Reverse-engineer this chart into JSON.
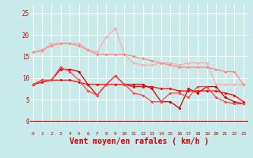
{
  "background_color": "#c8eaea",
  "grid_color": "#ffffff",
  "xlabel": "Vent moyen/en rafales ( km/h )",
  "xlabel_color": "#cc0000",
  "xlabel_fontsize": 7,
  "tick_label_color": "#cc0000",
  "x": [
    0,
    1,
    2,
    3,
    4,
    5,
    6,
    7,
    8,
    9,
    10,
    11,
    12,
    13,
    14,
    15,
    16,
    17,
    18,
    19,
    20,
    21,
    22,
    23
  ],
  "ylim": [
    -0.5,
    27
  ],
  "xlim": [
    -0.3,
    23.5
  ],
  "yticks": [
    0,
    5,
    10,
    15,
    20,
    25
  ],
  "series": [
    {
      "color": "#ffaaaa",
      "values": [
        16.0,
        16.2,
        18.0,
        18.0,
        18.0,
        18.0,
        16.5,
        16.0,
        19.5,
        21.5,
        15.5,
        13.5,
        13.0,
        13.0,
        13.5,
        13.5,
        13.0,
        13.5,
        13.5,
        13.5,
        8.5,
        8.5,
        8.5,
        8.5
      ]
    },
    {
      "color": "#ff8888",
      "values": [
        16.0,
        16.5,
        17.5,
        18.0,
        18.0,
        17.5,
        16.5,
        15.5,
        15.5,
        15.5,
        15.5,
        15.0,
        14.5,
        14.0,
        13.5,
        13.0,
        12.5,
        12.5,
        12.5,
        12.5,
        12.0,
        11.5,
        11.5,
        8.5
      ]
    },
    {
      "color": "#cc0000",
      "values": [
        8.5,
        9.5,
        9.5,
        12.0,
        12.0,
        11.5,
        8.5,
        6.0,
        8.5,
        10.5,
        8.5,
        8.5,
        8.5,
        7.5,
        4.5,
        4.5,
        3.0,
        7.5,
        6.5,
        8.0,
        8.0,
        5.5,
        4.5,
        4.0
      ]
    },
    {
      "color": "#ff0000",
      "values": [
        8.5,
        9.0,
        9.5,
        9.5,
        9.5,
        9.0,
        8.5,
        8.5,
        8.5,
        8.5,
        8.5,
        8.0,
        8.0,
        8.0,
        7.5,
        7.5,
        7.0,
        7.0,
        7.0,
        7.0,
        7.0,
        6.5,
        6.0,
        4.5
      ]
    },
    {
      "color": "#ff4444",
      "values": [
        8.5,
        9.5,
        9.5,
        12.5,
        11.5,
        9.5,
        7.0,
        6.0,
        8.5,
        10.5,
        8.5,
        6.5,
        6.0,
        4.5,
        4.5,
        6.5,
        6.5,
        5.5,
        8.0,
        8.0,
        5.5,
        4.5,
        4.0,
        4.0
      ]
    }
  ],
  "arrow_color": "#cc0000"
}
